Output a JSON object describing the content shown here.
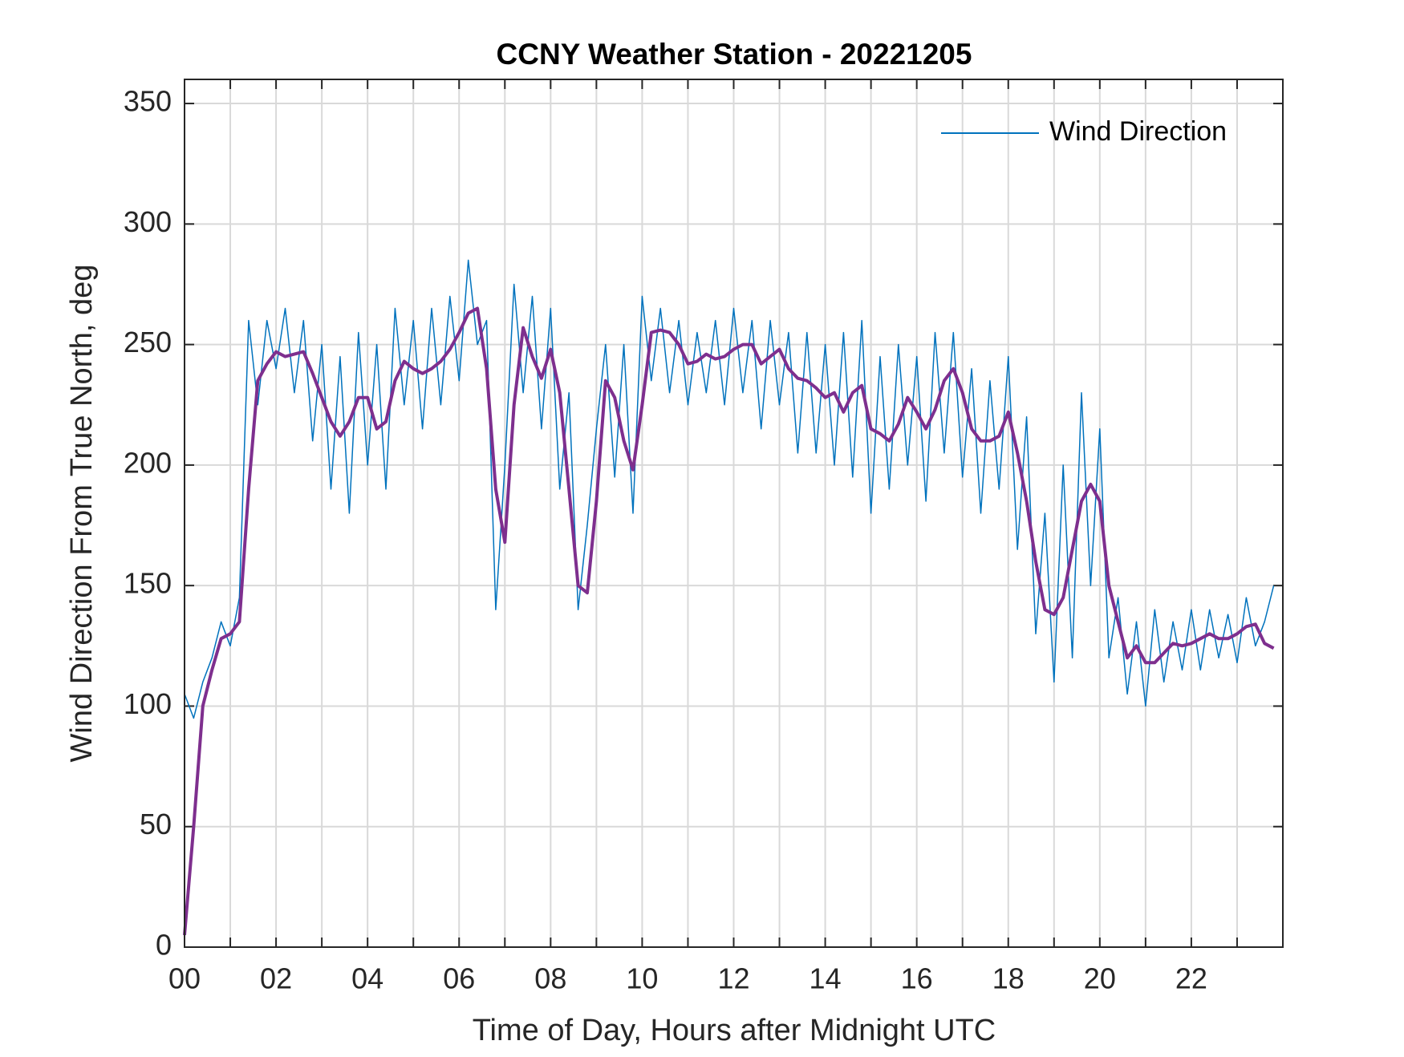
{
  "chart_data": {
    "type": "line",
    "title": "CCNY Weather Station - 20221205",
    "x_label": "Time of Day, Hours after Midnight UTC",
    "y_label": "Wind Direction From True North, deg",
    "xlim": [
      0,
      24
    ],
    "ylim": [
      0,
      360
    ],
    "xticks": [
      {
        "value": 0,
        "label": "00"
      },
      {
        "value": 2,
        "label": "02"
      },
      {
        "value": 4,
        "label": "04"
      },
      {
        "value": 6,
        "label": "06"
      },
      {
        "value": 8,
        "label": "08"
      },
      {
        "value": 10,
        "label": "10"
      },
      {
        "value": 12,
        "label": "12"
      },
      {
        "value": 14,
        "label": "14"
      },
      {
        "value": 16,
        "label": "16"
      },
      {
        "value": 18,
        "label": "18"
      },
      {
        "value": 20,
        "label": "20"
      },
      {
        "value": 22,
        "label": "22"
      }
    ],
    "xminorticks": [
      1,
      3,
      5,
      7,
      9,
      11,
      13,
      15,
      17,
      19,
      21,
      23
    ],
    "yticks": [
      0,
      50,
      100,
      150,
      200,
      250,
      300,
      350
    ],
    "grid": true,
    "legend_position": "upper-right",
    "x": [
      0,
      0.2,
      0.4,
      0.6,
      0.8,
      1,
      1.2,
      1.4,
      1.6,
      1.8,
      2,
      2.2,
      2.4,
      2.6,
      2.8,
      3,
      3.2,
      3.4,
      3.6,
      3.8,
      4,
      4.2,
      4.4,
      4.6,
      4.8,
      5,
      5.2,
      5.4,
      5.6,
      5.8,
      6,
      6.2,
      6.4,
      6.6,
      6.8,
      7,
      7.2,
      7.4,
      7.6,
      7.8,
      8,
      8.2,
      8.4,
      8.6,
      8.8,
      9,
      9.2,
      9.4,
      9.6,
      9.8,
      10,
      10.2,
      10.4,
      10.6,
      10.8,
      11,
      11.2,
      11.4,
      11.6,
      11.8,
      12,
      12.2,
      12.4,
      12.6,
      12.8,
      13,
      13.2,
      13.4,
      13.6,
      13.8,
      14,
      14.2,
      14.4,
      14.6,
      14.8,
      15,
      15.2,
      15.4,
      15.6,
      15.8,
      16,
      16.2,
      16.4,
      16.6,
      16.8,
      17,
      17.2,
      17.4,
      17.6,
      17.8,
      18,
      18.2,
      18.4,
      18.6,
      18.8,
      19,
      19.2,
      19.4,
      19.6,
      19.8,
      20,
      20.2,
      20.4,
      20.6,
      20.8,
      21,
      21.2,
      21.4,
      21.6,
      21.8,
      22,
      22.2,
      22.4,
      22.6,
      22.8,
      23,
      23.2,
      23.4,
      23.6,
      23.8
    ],
    "series": [
      {
        "name": "Wind Direction",
        "color": "#0072bd",
        "width": 1.5,
        "values": [
          105,
          95,
          110,
          120,
          135,
          125,
          145,
          260,
          225,
          260,
          240,
          265,
          230,
          260,
          210,
          250,
          190,
          245,
          180,
          255,
          200,
          250,
          190,
          265,
          225,
          260,
          215,
          265,
          225,
          270,
          235,
          285,
          250,
          260,
          140,
          200,
          275,
          230,
          270,
          215,
          265,
          190,
          230,
          140,
          175,
          215,
          250,
          195,
          250,
          180,
          270,
          235,
          265,
          230,
          260,
          225,
          255,
          230,
          260,
          225,
          265,
          230,
          260,
          215,
          260,
          225,
          255,
          205,
          255,
          205,
          250,
          200,
          255,
          195,
          260,
          180,
          245,
          190,
          250,
          200,
          245,
          185,
          255,
          205,
          255,
          195,
          240,
          180,
          235,
          190,
          245,
          165,
          220,
          130,
          180,
          110,
          200,
          120,
          230,
          150,
          215,
          120,
          145,
          105,
          135,
          100,
          140,
          110,
          135,
          115,
          140,
          115,
          140,
          120,
          138,
          118,
          145,
          125,
          135,
          150
        ]
      },
      {
        "color": "#7e2f8e",
        "width": 4,
        "values": [
          5,
          50,
          100,
          115,
          128,
          130,
          135,
          190,
          235,
          242,
          247,
          245,
          246,
          247,
          238,
          228,
          218,
          212,
          218,
          228,
          228,
          215,
          218,
          235,
          243,
          240,
          238,
          240,
          243,
          248,
          255,
          263,
          265,
          240,
          190,
          168,
          225,
          257,
          245,
          236,
          248,
          230,
          190,
          150,
          147,
          185,
          235,
          228,
          210,
          198,
          225,
          255,
          256,
          255,
          250,
          242,
          243,
          246,
          244,
          245,
          248,
          250,
          250,
          242,
          245,
          248,
          240,
          236,
          235,
          232,
          228,
          230,
          222,
          230,
          233,
          215,
          213,
          210,
          217,
          228,
          222,
          215,
          223,
          235,
          240,
          230,
          215,
          210,
          210,
          212,
          222,
          205,
          185,
          160,
          140,
          138,
          145,
          165,
          185,
          192,
          185,
          150,
          135,
          120,
          125,
          118,
          118,
          122,
          126,
          125,
          126,
          128,
          130,
          128,
          128,
          130,
          133,
          134,
          126,
          124
        ]
      }
    ]
  }
}
